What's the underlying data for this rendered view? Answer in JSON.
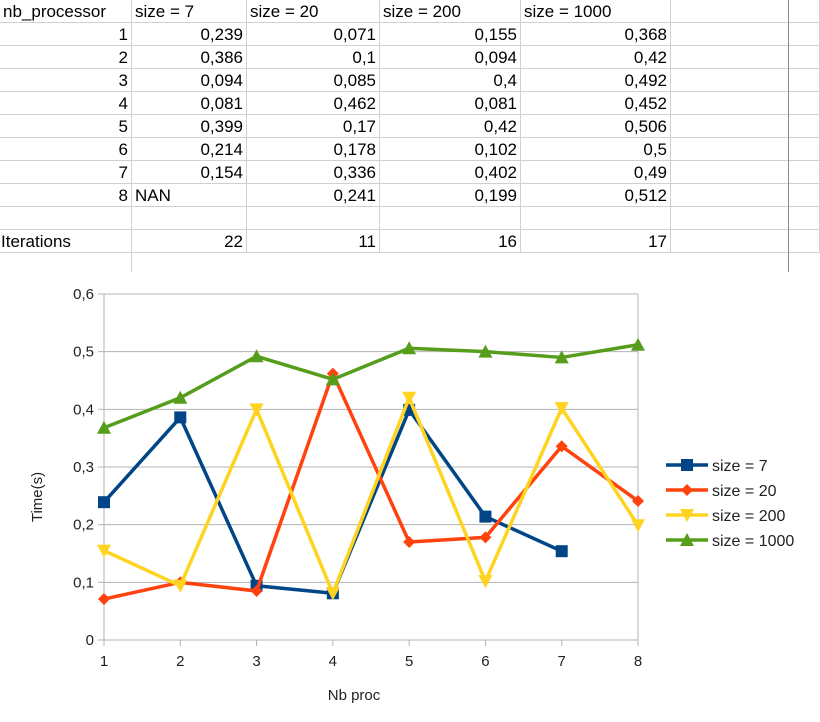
{
  "sheet": {
    "headers": [
      "nb_processor",
      "size = 7",
      "size = 20",
      "size = 200",
      "size = 1000"
    ],
    "rows": [
      {
        "n": "1",
        "c1": "0,239",
        "c2": "0,071",
        "c3": "0,155",
        "c4": "0,368"
      },
      {
        "n": "2",
        "c1": "0,386",
        "c2": "0,1",
        "c3": "0,094",
        "c4": "0,42"
      },
      {
        "n": "3",
        "c1": "0,094",
        "c2": "0,085",
        "c3": "0,4",
        "c4": "0,492"
      },
      {
        "n": "4",
        "c1": "0,081",
        "c2": "0,462",
        "c3": "0,081",
        "c4": "0,452"
      },
      {
        "n": "5",
        "c1": "0,399",
        "c2": "0,17",
        "c3": "0,42",
        "c4": "0,506"
      },
      {
        "n": "6",
        "c1": "0,214",
        "c2": "0,178",
        "c3": "0,102",
        "c4": "0,5"
      },
      {
        "n": "7",
        "c1": "0,154",
        "c2": "0,336",
        "c3": "0,402",
        "c4": "0,49"
      },
      {
        "n": "8",
        "c1": "NAN",
        "c2": "0,241",
        "c3": "0,199",
        "c4": "0,512"
      }
    ],
    "iterations": {
      "label": "Iterations",
      "c1": "22",
      "c2": "11",
      "c3": "16",
      "c4": "17"
    }
  },
  "chart_data": {
    "type": "line",
    "x": [
      1,
      2,
      3,
      4,
      5,
      6,
      7,
      8
    ],
    "xlabel": "Nb proc",
    "ylabel": "Time(s)",
    "ylim": [
      0,
      0.6
    ],
    "yticks": [
      "0",
      "0,1",
      "0,2",
      "0,3",
      "0,4",
      "0,5",
      "0,6"
    ],
    "xticks": [
      "1",
      "2",
      "3",
      "4",
      "5",
      "6",
      "7",
      "8"
    ],
    "grid": "horizontal",
    "legend_position": "right",
    "series": [
      {
        "name": "size = 7",
        "color": "#004586",
        "marker": "square",
        "values": [
          0.239,
          0.386,
          0.094,
          0.081,
          0.399,
          0.214,
          0.154,
          null
        ]
      },
      {
        "name": "size = 20",
        "color": "#ff420e",
        "marker": "diamond",
        "values": [
          0.071,
          0.1,
          0.085,
          0.462,
          0.17,
          0.178,
          0.336,
          0.241
        ]
      },
      {
        "name": "size = 200",
        "color": "#ffd320",
        "marker": "triangle-down",
        "values": [
          0.155,
          0.094,
          0.4,
          0.081,
          0.42,
          0.102,
          0.402,
          0.199
        ]
      },
      {
        "name": "size = 1000",
        "color": "#579d1c",
        "marker": "triangle-up",
        "values": [
          0.368,
          0.42,
          0.492,
          0.452,
          0.506,
          0.5,
          0.49,
          0.512
        ]
      }
    ]
  }
}
